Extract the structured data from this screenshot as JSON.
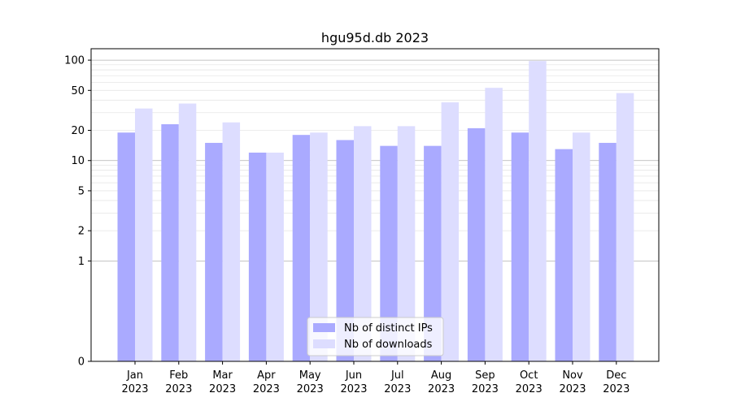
{
  "chart_data": {
    "type": "bar",
    "title": "hgu95d.db 2023",
    "xlabel": "",
    "ylabel": "",
    "y_scale": "symlog",
    "ylim": [
      0,
      130
    ],
    "y_ticks": [
      0,
      1,
      2,
      5,
      10,
      20,
      50,
      100
    ],
    "grid": true,
    "legend_position": "lower-center",
    "categories": [
      [
        "Jan",
        "2023"
      ],
      [
        "Feb",
        "2023"
      ],
      [
        "Mar",
        "2023"
      ],
      [
        "Apr",
        "2023"
      ],
      [
        "May",
        "2023"
      ],
      [
        "Jun",
        "2023"
      ],
      [
        "Jul",
        "2023"
      ],
      [
        "Aug",
        "2023"
      ],
      [
        "Sep",
        "2023"
      ],
      [
        "Oct",
        "2023"
      ],
      [
        "Nov",
        "2023"
      ],
      [
        "Dec",
        "2023"
      ]
    ],
    "series": [
      {
        "name": "Nb of distinct IPs",
        "color": "#aaaaff",
        "values": [
          19,
          23,
          15,
          12,
          18,
          16,
          14,
          14,
          21,
          19,
          13,
          15
        ]
      },
      {
        "name": "Nb of downloads",
        "color": "#ddddff",
        "values": [
          33,
          37,
          24,
          12,
          19,
          22,
          22,
          38,
          53,
          98,
          19,
          47
        ]
      }
    ]
  }
}
